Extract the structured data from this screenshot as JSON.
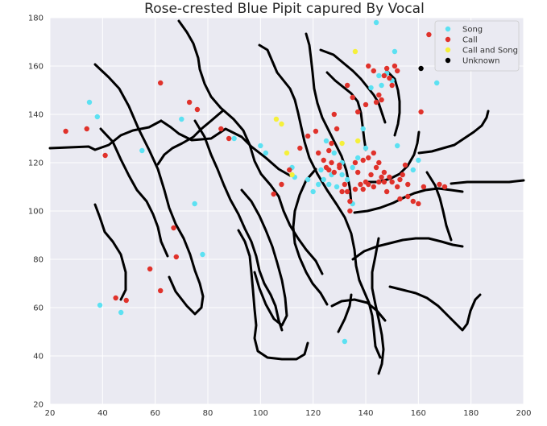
{
  "chart_data": {
    "type": "scatter",
    "title": "Rose-crested Blue Pipit capured By Vocal",
    "xlabel": "",
    "ylabel": "",
    "xlim": [
      20,
      200
    ],
    "ylim": [
      20,
      180
    ],
    "xticks": [
      20,
      40,
      60,
      80,
      100,
      120,
      140,
      160,
      180,
      200
    ],
    "yticks": [
      20,
      40,
      60,
      80,
      100,
      120,
      140,
      160,
      180
    ],
    "grid": true,
    "background_color": "#EAEAF2",
    "legend_position": "top-right",
    "series": [
      {
        "name": "Song",
        "color": "#5CE1F2",
        "points": [
          [
            35,
            145
          ],
          [
            38,
            139
          ],
          [
            39,
            61
          ],
          [
            47,
            58
          ],
          [
            55,
            125
          ],
          [
            70,
            138
          ],
          [
            75,
            103
          ],
          [
            78,
            82
          ],
          [
            90,
            130
          ],
          [
            100,
            127
          ],
          [
            102,
            124
          ],
          [
            112,
            118
          ],
          [
            113,
            114
          ],
          [
            118,
            113
          ],
          [
            120,
            108
          ],
          [
            122,
            111
          ],
          [
            124,
            113
          ],
          [
            126,
            111
          ],
          [
            127,
            115
          ],
          [
            129,
            110
          ],
          [
            131,
            120
          ],
          [
            133,
            113
          ],
          [
            135,
            118
          ],
          [
            135,
            103
          ],
          [
            137,
            122
          ],
          [
            139,
            134
          ],
          [
            142,
            151
          ],
          [
            145,
            156
          ],
          [
            146,
            152
          ],
          [
            150,
            154
          ],
          [
            151,
            166
          ],
          [
            152,
            127
          ],
          [
            158,
            117
          ],
          [
            160,
            121
          ],
          [
            167,
            153
          ],
          [
            144,
            178
          ],
          [
            148,
            157
          ],
          [
            140,
            126
          ],
          [
            131,
            115
          ],
          [
            132,
            46
          ],
          [
            128,
            124
          ],
          [
            123,
            117
          ],
          [
            125,
            129
          ]
        ]
      },
      {
        "name": "Call",
        "color": "#E0322B",
        "points": [
          [
            26,
            133
          ],
          [
            34,
            134
          ],
          [
            41,
            123
          ],
          [
            45,
            64
          ],
          [
            49,
            63
          ],
          [
            58,
            76
          ],
          [
            62,
            67
          ],
          [
            62,
            153
          ],
          [
            67,
            93
          ],
          [
            68,
            81
          ],
          [
            73,
            145
          ],
          [
            76,
            142
          ],
          [
            85,
            134
          ],
          [
            88,
            130
          ],
          [
            105,
            107
          ],
          [
            108,
            111
          ],
          [
            111,
            117
          ],
          [
            115,
            126
          ],
          [
            118,
            131
          ],
          [
            121,
            133
          ],
          [
            122,
            124
          ],
          [
            124,
            121
          ],
          [
            125,
            118
          ],
          [
            126,
            117
          ],
          [
            127,
            120
          ],
          [
            128,
            116
          ],
          [
            130,
            118
          ],
          [
            131,
            108
          ],
          [
            132,
            111
          ],
          [
            133,
            108
          ],
          [
            134,
            104
          ],
          [
            136,
            109
          ],
          [
            137,
            116
          ],
          [
            138,
            111
          ],
          [
            139,
            109
          ],
          [
            140,
            112
          ],
          [
            141,
            111
          ],
          [
            142,
            115
          ],
          [
            143,
            110
          ],
          [
            144,
            118
          ],
          [
            145,
            112
          ],
          [
            146,
            114
          ],
          [
            147,
            116
          ],
          [
            148,
            108
          ],
          [
            149,
            114
          ],
          [
            150,
            112
          ],
          [
            152,
            110
          ],
          [
            153,
            113
          ],
          [
            154,
            115
          ],
          [
            155,
            119
          ],
          [
            148,
            159
          ],
          [
            149,
            155
          ],
          [
            150,
            152
          ],
          [
            152,
            158
          ],
          [
            151,
            160
          ],
          [
            147,
            156
          ],
          [
            141,
            160
          ],
          [
            143,
            158
          ],
          [
            145,
            148
          ],
          [
            144,
            145
          ],
          [
            146,
            146
          ],
          [
            135,
            147
          ],
          [
            137,
            141
          ],
          [
            140,
            144
          ],
          [
            133,
            152
          ],
          [
            128,
            140
          ],
          [
            129,
            134
          ],
          [
            126,
            125
          ],
          [
            127,
            128
          ],
          [
            156,
            106
          ],
          [
            160,
            103
          ],
          [
            162,
            110
          ],
          [
            164,
            173
          ],
          [
            168,
            111
          ],
          [
            170,
            110
          ],
          [
            161,
            141
          ],
          [
            134,
            100
          ],
          [
            130,
            119
          ],
          [
            136,
            120
          ],
          [
            139,
            121
          ],
          [
            141,
            122
          ],
          [
            143,
            124
          ],
          [
            145,
            120
          ],
          [
            147,
            112
          ],
          [
            153,
            105
          ],
          [
            156,
            111
          ],
          [
            158,
            104
          ]
        ]
      },
      {
        "name": "Call and Song",
        "color": "#F5F03A",
        "points": [
          [
            106,
            138
          ],
          [
            108,
            136
          ],
          [
            110,
            124
          ],
          [
            112,
            115
          ],
          [
            136,
            166
          ],
          [
            131,
            128
          ],
          [
            137,
            129
          ]
        ]
      },
      {
        "name": "Unknown",
        "color": "#000000",
        "points": [
          [
            161,
            159
          ]
        ]
      }
    ]
  }
}
